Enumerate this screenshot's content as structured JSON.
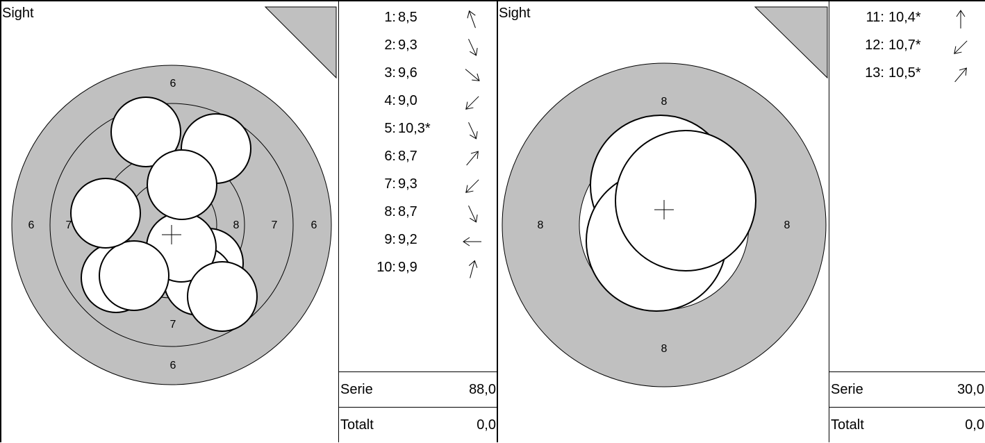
{
  "panels": [
    {
      "sight_label": "Sight",
      "ring_labels": {
        "top": "6",
        "bottom": "6",
        "left_outer": "6",
        "right_outer": "6",
        "left_inner": "7",
        "right_inner": "7",
        "right_eight": "8",
        "bottom_seven": "7"
      },
      "shots": [
        {
          "num": "1:",
          "value": "8,5",
          "dir": "up-left"
        },
        {
          "num": "2:",
          "value": "9,3",
          "dir": "down-right-steep"
        },
        {
          "num": "3:",
          "value": "9,6",
          "dir": "down-right"
        },
        {
          "num": "4:",
          "value": "9,0",
          "dir": "down-left"
        },
        {
          "num": "5:",
          "value": "10,3*",
          "dir": "down-right-steep"
        },
        {
          "num": "6:",
          "value": "8,7",
          "dir": "up-right"
        },
        {
          "num": "7:",
          "value": "9,3",
          "dir": "down-left"
        },
        {
          "num": "8:",
          "value": "8,7",
          "dir": "down-right-steep"
        },
        {
          "num": "9:",
          "value": "9,2",
          "dir": "left"
        },
        {
          "num": "10:",
          "value": "9,9",
          "dir": "up-right-steep"
        }
      ],
      "serie_label": "Serie",
      "serie_value": "88,0",
      "totalt_label": "Totalt",
      "totalt_value": "0,0"
    },
    {
      "sight_label": "Sight",
      "ring_labels": {
        "top": "8",
        "bottom": "8",
        "left": "8",
        "right": "8"
      },
      "shots": [
        {
          "num": "11:",
          "value": "10,4*",
          "dir": "up"
        },
        {
          "num": "12:",
          "value": "10,7*",
          "dir": "down-left"
        },
        {
          "num": "13:",
          "value": "10,5*",
          "dir": "up-right"
        }
      ],
      "serie_label": "Serie",
      "serie_value": "30,0",
      "totalt_label": "Totalt",
      "totalt_value": "0,0"
    }
  ],
  "colors": {
    "ring_fill": "#c0c0c0",
    "shot_fill": "#ffffff",
    "line": "#000000"
  }
}
